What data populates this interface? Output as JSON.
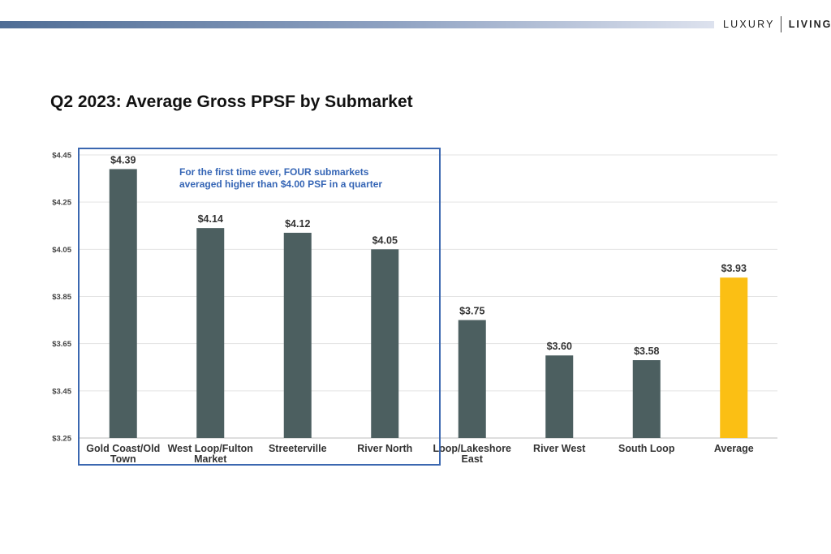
{
  "brand": {
    "left": "LUXURY",
    "right": "LIVING"
  },
  "chart_data": {
    "type": "bar",
    "title": "Q2 2023: Average Gross PPSF by Submarket",
    "xlabel": "",
    "ylabel": "",
    "ylim": [
      3.25,
      4.45
    ],
    "yticks": [
      "$4.45",
      "$4.25",
      "$4.05",
      "$3.85",
      "$3.65",
      "$3.45",
      "$3.25"
    ],
    "ytick_values": [
      4.45,
      4.25,
      4.05,
      3.85,
      3.65,
      3.45,
      3.25
    ],
    "grid": true,
    "categories": [
      [
        "Gold Coast/Old",
        "Town"
      ],
      [
        "West Loop/Fulton",
        "Market"
      ],
      [
        "Streeterville"
      ],
      [
        "River North"
      ],
      [
        "Loop/Lakeshore",
        "East"
      ],
      [
        "River West"
      ],
      [
        "South Loop"
      ],
      [
        "Average"
      ]
    ],
    "values": [
      4.39,
      4.14,
      4.12,
      4.05,
      3.75,
      3.6,
      3.58,
      3.93
    ],
    "value_labels": [
      "$4.39",
      "$4.14",
      "$4.12",
      "$4.05",
      "$3.75",
      "$3.60",
      "$3.58",
      "$3.93"
    ],
    "colors": {
      "bar": "#4c5f60",
      "highlight": "#fbbf14",
      "highlight_index": 7,
      "box": "#3b67b0",
      "annotation_text": "#3565b5"
    },
    "annotation": {
      "lines": [
        "For the first time ever, FOUR submarkets",
        "averaged higher than $4.00 PSF in a quarter"
      ],
      "encloses_categories": [
        0,
        3
      ]
    }
  }
}
